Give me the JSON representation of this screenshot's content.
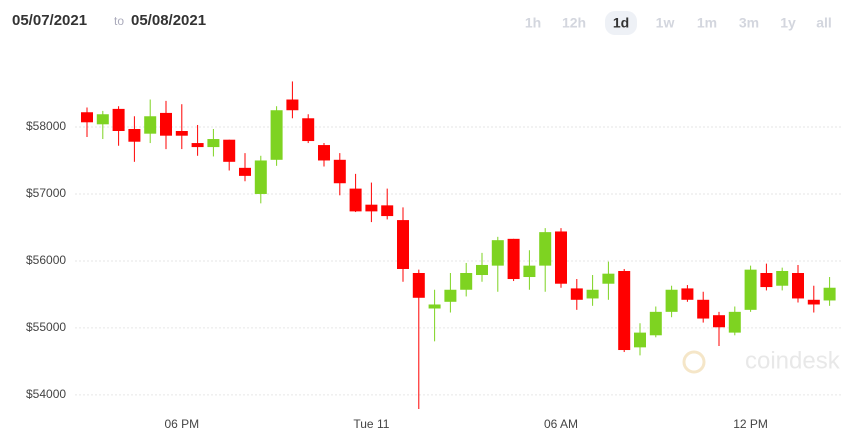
{
  "header": {
    "date_from": "05/07/2021",
    "separator": "to",
    "date_to": "05/08/2021",
    "ranges": [
      "1h",
      "12h",
      "1d",
      "1w",
      "1m",
      "3m",
      "1y",
      "all"
    ],
    "selected": "1d"
  },
  "chart_data": {
    "type": "candlestick",
    "watermark": "coindesk",
    "categories": [
      null,
      null,
      null,
      null,
      null,
      null,
      "06 PM",
      null,
      null,
      null,
      null,
      null,
      null,
      null,
      null,
      null,
      null,
      null,
      "Tue 11",
      null,
      null,
      null,
      null,
      null,
      null,
      null,
      null,
      null,
      null,
      null,
      "06 AM",
      null,
      null,
      null,
      null,
      null,
      null,
      null,
      null,
      null,
      null,
      null,
      "12 PM",
      null,
      null,
      null,
      null,
      null
    ],
    "open": [
      58220,
      58040,
      58270,
      57970,
      57900,
      58210,
      57940,
      57760,
      57700,
      57810,
      57390,
      57000,
      57510,
      58410,
      58130,
      57730,
      57510,
      57080,
      56840,
      56830,
      56610,
      55820,
      55290,
      55390,
      55570,
      55790,
      55930,
      56330,
      55760,
      55930,
      56440,
      55590,
      55440,
      55660,
      55850,
      54710,
      54890,
      55240,
      55590,
      55420,
      55190,
      54930,
      55270,
      55820,
      55630,
      55820,
      55420,
      55410
    ],
    "high": [
      58290,
      58240,
      58310,
      58160,
      58410,
      58390,
      58340,
      58030,
      57970,
      57810,
      57610,
      57570,
      58310,
      58680,
      58190,
      57760,
      57610,
      57300,
      57170,
      57080,
      56800,
      55870,
      55570,
      55820,
      55970,
      56120,
      56360,
      56330,
      56160,
      56490,
      56490,
      55730,
      55790,
      55990,
      55880,
      55070,
      55320,
      55630,
      55640,
      55540,
      55240,
      55320,
      55930,
      55960,
      55900,
      55940,
      55630,
      55760
    ],
    "low": [
      57850,
      57820,
      57720,
      57480,
      57760,
      57670,
      57670,
      57570,
      57560,
      57350,
      57190,
      56860,
      57420,
      58130,
      57760,
      57410,
      56980,
      56730,
      56580,
      56620,
      55690,
      53790,
      54800,
      55230,
      55470,
      55690,
      55540,
      55700,
      55570,
      55540,
      55600,
      55270,
      55330,
      55420,
      54640,
      54590,
      54860,
      55160,
      55390,
      55080,
      54730,
      54890,
      55240,
      55560,
      55560,
      55380,
      55230,
      55330
    ],
    "close": [
      58070,
      58190,
      57940,
      57780,
      58160,
      57870,
      57870,
      57700,
      57820,
      57480,
      57270,
      57500,
      58250,
      58250,
      57790,
      57500,
      57160,
      56740,
      56740,
      56670,
      55880,
      55450,
      55350,
      55570,
      55820,
      55940,
      56310,
      55730,
      55930,
      56430,
      55660,
      55420,
      55570,
      55810,
      54670,
      54930,
      55240,
      55570,
      55420,
      55140,
      55010,
      55240,
      55870,
      55610,
      55850,
      55440,
      55350,
      55600
    ],
    "up_color": "#7ed321",
    "down_color": "#ff0000",
    "ylim": [
      53700,
      59000
    ],
    "yticks": [
      {
        "value": 54000,
        "label": "$54000"
      },
      {
        "value": 55000,
        "label": "$55000"
      },
      {
        "value": 56000,
        "label": "$56000"
      },
      {
        "value": 57000,
        "label": "$57000"
      },
      {
        "value": 58000,
        "label": "$58000"
      }
    ],
    "grid": true
  }
}
